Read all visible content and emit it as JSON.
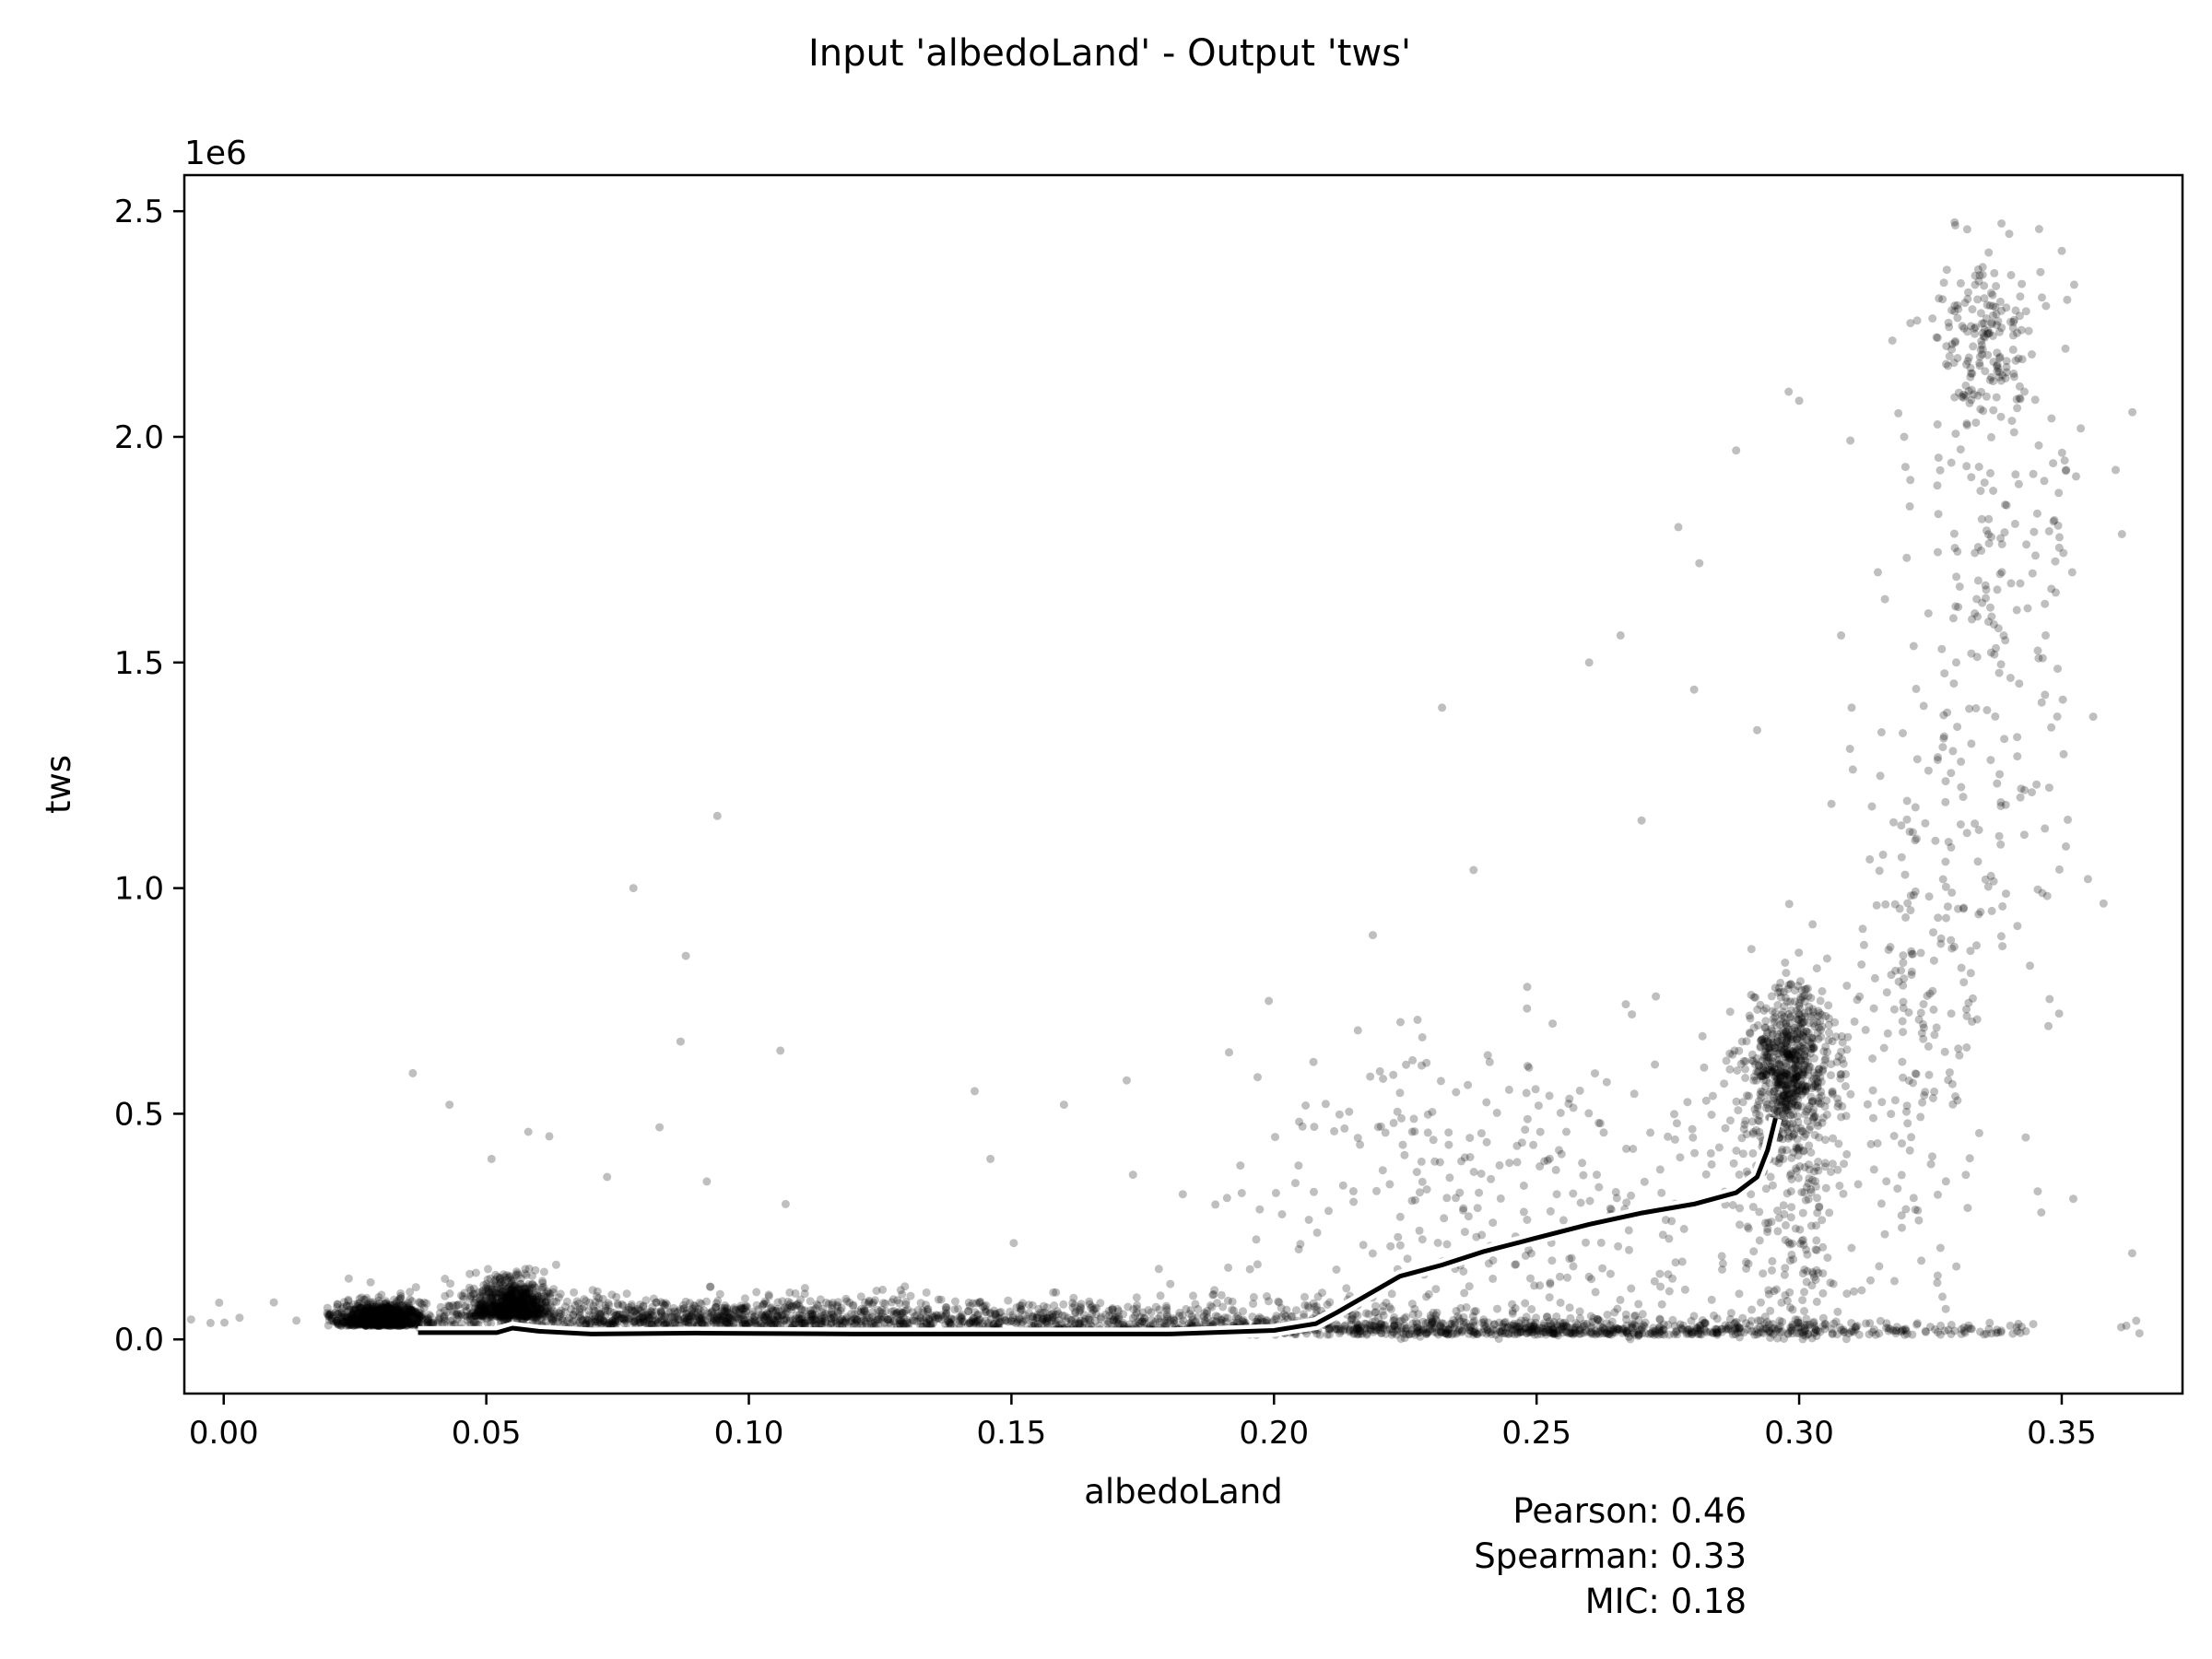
{
  "chart_data": {
    "type": "scatter",
    "title": "Input 'albedoLand' - Output 'tws'",
    "xlabel": "albedoLand",
    "ylabel": "tws",
    "y_offset_label": "1e6",
    "xlim": [
      -0.0075,
      0.373
    ],
    "ylim": [
      -120000,
      2580000
    ],
    "xticks": [
      0.0,
      0.05,
      0.1,
      0.15,
      0.2,
      0.25,
      0.3,
      0.35
    ],
    "xtick_labels": [
      "0.00",
      "0.05",
      "0.10",
      "0.15",
      "0.20",
      "0.25",
      "0.30",
      "0.35"
    ],
    "yticks": [
      0,
      500000,
      1000000,
      1500000,
      2000000,
      2500000
    ],
    "ytick_labels": [
      "0.0",
      "0.5",
      "1.0",
      "1.5",
      "2.0",
      "2.5"
    ],
    "grid": false,
    "point_color": "#000000",
    "point_opacity": 0.25,
    "line_color": "#000000",
    "line_outline_color": "#ffffff",
    "series": [
      {
        "kind": "scatter",
        "clusters": [
          {
            "x": 0.03,
            "y": 30000,
            "sx": 0.004,
            "sy": 25000,
            "n": 900
          },
          {
            "x": 0.055,
            "y": 50000,
            "sx": 0.004,
            "sy": 40000,
            "n": 700
          },
          {
            "x": 0.09,
            "y": 30000,
            "sx": 0.03,
            "sy": 30000,
            "n": 900
          },
          {
            "x": 0.17,
            "y": 20000,
            "sx": 0.05,
            "sy": 30000,
            "n": 800
          },
          {
            "x": 0.26,
            "y": 10000,
            "sx": 0.04,
            "sy": 15000,
            "n": 700
          },
          {
            "x": 0.298,
            "y": 600000,
            "sx": 0.004,
            "sy": 90000,
            "n": 650
          },
          {
            "x": 0.3,
            "y": 300000,
            "sx": 0.006,
            "sy": 250000,
            "n": 250
          },
          {
            "x": 0.335,
            "y": 2200000,
            "sx": 0.004,
            "sy": 90000,
            "n": 150
          },
          {
            "x": 0.337,
            "y": 1600000,
            "sx": 0.009,
            "sy": 450000,
            "n": 250
          },
          {
            "x": 0.322,
            "y": 700000,
            "sx": 0.006,
            "sy": 300000,
            "n": 170
          },
          {
            "x": 0.25,
            "y": 300000,
            "sx": 0.03,
            "sy": 200000,
            "n": 350
          }
        ],
        "outliers": [
          [
            0.036,
            590000
          ],
          [
            0.043,
            520000
          ],
          [
            0.051,
            400000
          ],
          [
            0.058,
            460000
          ],
          [
            0.062,
            450000
          ],
          [
            0.073,
            360000
          ],
          [
            0.078,
            1000000
          ],
          [
            0.083,
            470000
          ],
          [
            0.087,
            660000
          ],
          [
            0.088,
            850000
          ],
          [
            0.092,
            350000
          ],
          [
            0.094,
            1160000
          ],
          [
            0.106,
            640000
          ],
          [
            0.107,
            300000
          ],
          [
            0.143,
            550000
          ],
          [
            0.16,
            520000
          ],
          [
            0.146,
            400000
          ],
          [
            0.199,
            750000
          ],
          [
            0.232,
            1400000
          ],
          [
            0.238,
            1040000
          ],
          [
            0.26,
            1500000
          ],
          [
            0.266,
            1560000
          ],
          [
            0.27,
            1150000
          ],
          [
            0.277,
            1800000
          ],
          [
            0.28,
            1440000
          ],
          [
            0.281,
            1720000
          ],
          [
            0.292,
            1350000
          ],
          [
            0.298,
            2100000
          ],
          [
            0.3,
            2080000
          ],
          [
            0.288,
            1970000
          ],
          [
            0.352,
            1700000
          ],
          [
            0.356,
            1380000
          ],
          [
            0.355,
            1020000
          ],
          [
            0.347,
            2290000
          ],
          [
            0.332,
            2460000
          ],
          [
            0.34,
            2450000
          ],
          [
            0.32,
            2000000
          ],
          [
            0.315,
            1700000
          ],
          [
            0.31,
            1400000
          ],
          [
            0.308,
            1560000
          ]
        ]
      },
      {
        "kind": "line",
        "name": "",
        "x": [
          0.037,
          0.045,
          0.052,
          0.055,
          0.06,
          0.07,
          0.09,
          0.12,
          0.15,
          0.18,
          0.2,
          0.208,
          0.212,
          0.218,
          0.224,
          0.232,
          0.24,
          0.25,
          0.26,
          0.27,
          0.28,
          0.288,
          0.292,
          0.294,
          0.2955
        ],
        "y": [
          15000,
          15000,
          15000,
          25000,
          18000,
          12000,
          14000,
          12000,
          12000,
          12000,
          20000,
          35000,
          60000,
          100000,
          140000,
          165000,
          195000,
          225000,
          255000,
          280000,
          300000,
          325000,
          360000,
          420000,
          490000
        ]
      }
    ]
  },
  "stats": {
    "pearson": "Pearson: 0.46",
    "spearman": "Spearman: 0.33",
    "mic": "MIC: 0.18"
  }
}
